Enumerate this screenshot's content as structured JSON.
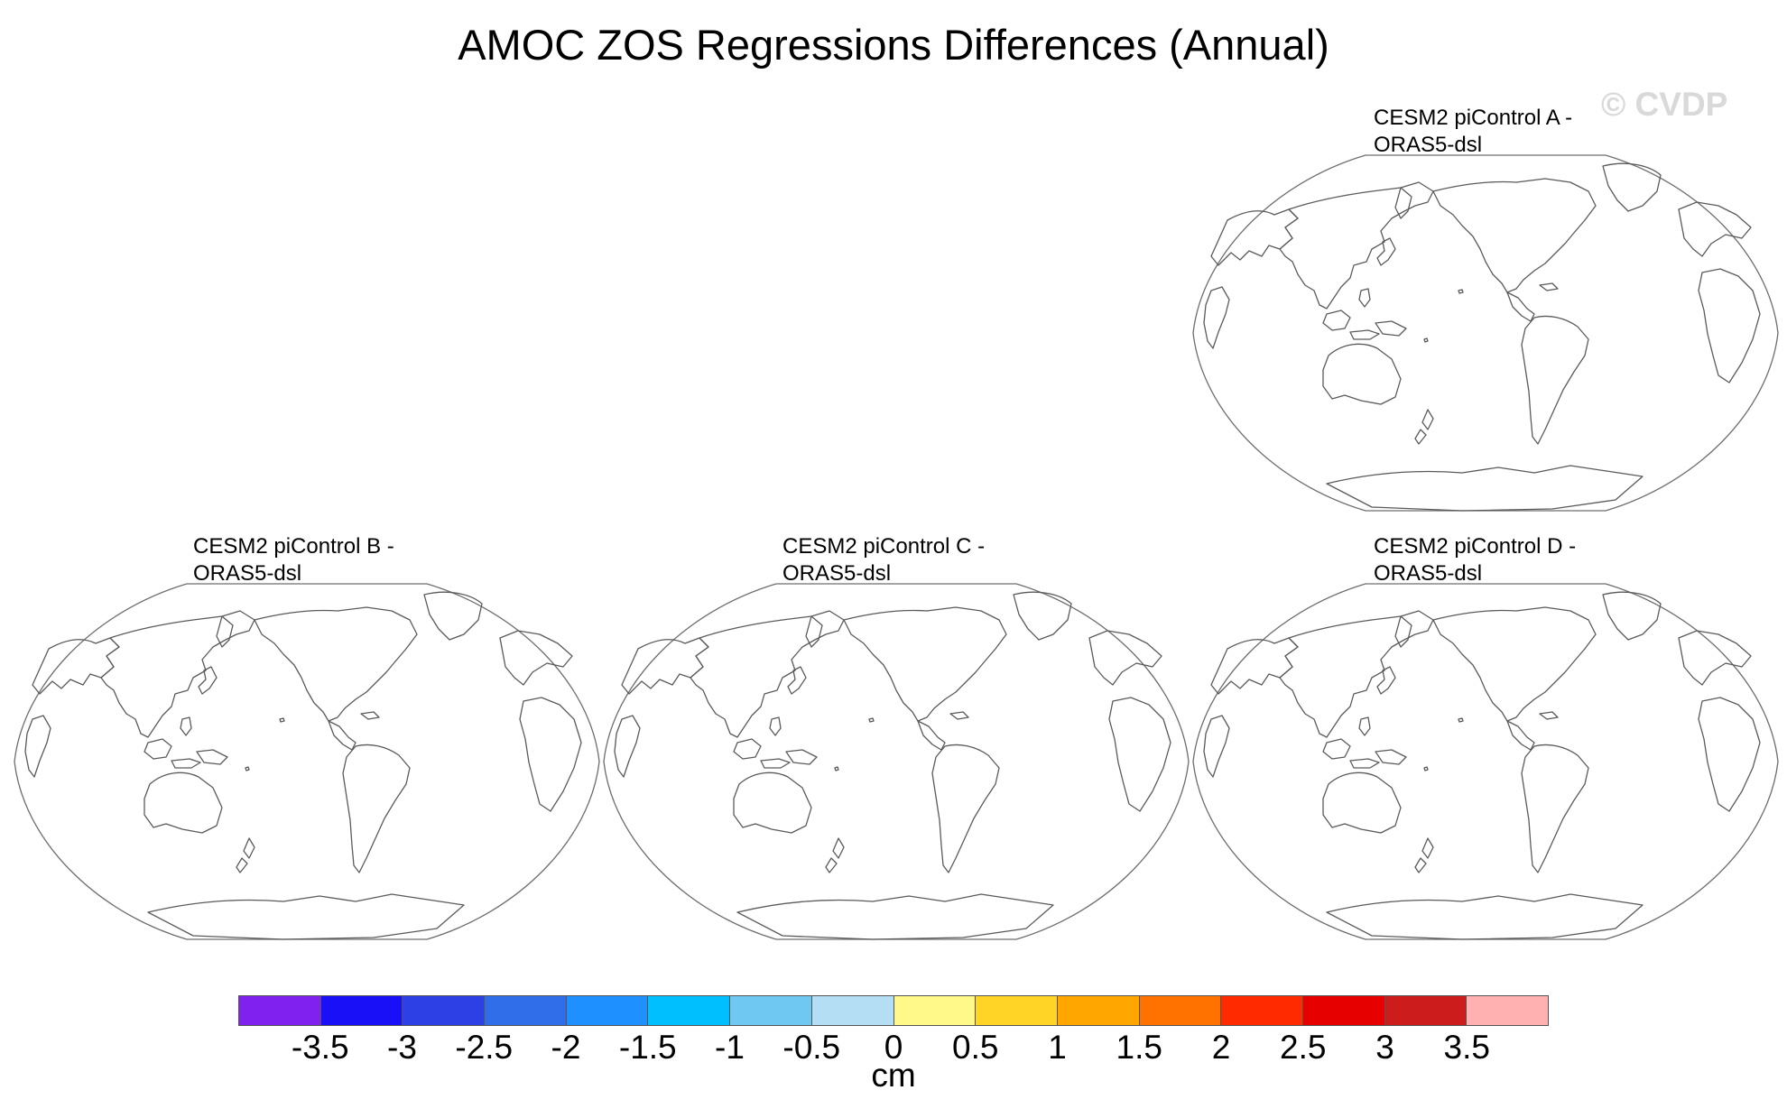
{
  "title": "AMOC ZOS Regressions Differences (Annual)",
  "watermark": "© CVDP",
  "panels": [
    {
      "title": "CESM2 piControl A -\nORAS5-dsl"
    },
    {
      "title": "CESM2 piControl B -\nORAS5-dsl"
    },
    {
      "title": "CESM2 piControl C -\nORAS5-dsl"
    },
    {
      "title": "CESM2 piControl D -\nORAS5-dsl"
    }
  ],
  "colorbar": {
    "units": "cm",
    "colors": [
      "#8021f0",
      "#1a10f8",
      "#2d40e6",
      "#2f6ee8",
      "#1e90ff",
      "#00bfff",
      "#6fc8f2",
      "#b3def4",
      "#fff98a",
      "#ffd426",
      "#ffa600",
      "#ff7200",
      "#ff2a00",
      "#e60000",
      "#cc1c1c",
      "#ffb1b1"
    ],
    "labels": [
      "-3.5",
      "-3",
      "-2.5",
      "-2",
      "-1.5",
      "-1",
      "-0.5",
      "0",
      "0.5",
      "1",
      "1.5",
      "2",
      "2.5",
      "3",
      "3.5"
    ]
  }
}
